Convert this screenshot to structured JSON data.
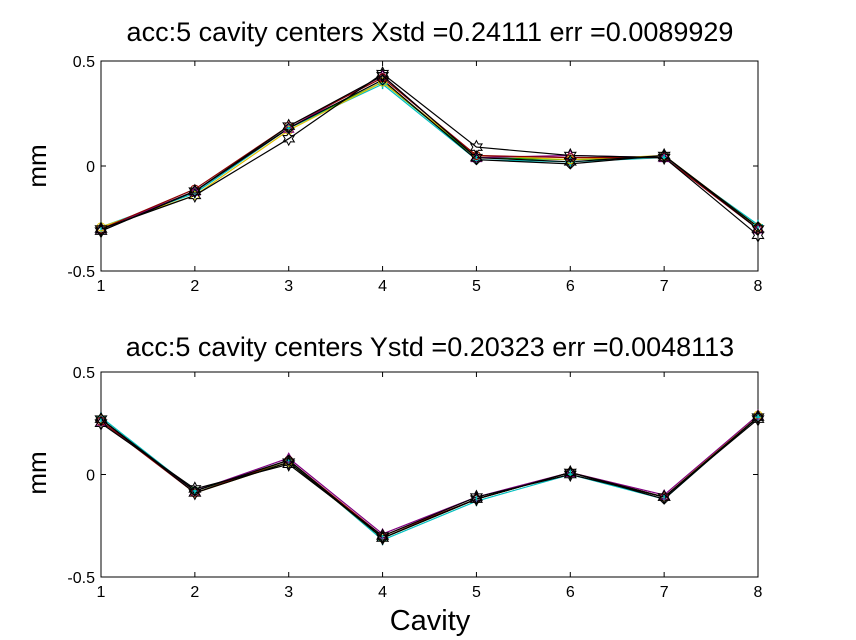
{
  "chart_data": [
    {
      "type": "line",
      "title": "acc:5 cavity centers Xstd =0.24111  err =0.0089929",
      "xlabel": "",
      "ylabel": "mm",
      "xlim": [
        1,
        8
      ],
      "ylim": [
        -0.5,
        0.5
      ],
      "xticks": [
        "1",
        "2",
        "3",
        "4",
        "5",
        "6",
        "7",
        "8"
      ],
      "yticks": [
        "0.5",
        "0",
        "-0.5"
      ],
      "grid": false,
      "x": [
        1,
        2,
        3,
        4,
        5,
        6,
        7,
        8
      ],
      "series": [
        {
          "color": "#000000",
          "marker": "hexagram",
          "values": [
            -0.31,
            -0.12,
            0.19,
            0.43,
            0.04,
            0.02,
            0.05,
            -0.3
          ]
        },
        {
          "color": "#000000",
          "marker": "hexagram",
          "values": [
            -0.3,
            -0.14,
            0.13,
            0.44,
            0.09,
            0.05,
            0.04,
            -0.33
          ]
        },
        {
          "color": "#000000",
          "marker": "diamond",
          "values": [
            -0.31,
            -0.12,
            0.18,
            0.41,
            0.03,
            0.01,
            0.05,
            -0.29
          ]
        },
        {
          "color": "#8b0000",
          "marker": "circle",
          "values": [
            -0.3,
            -0.11,
            0.19,
            0.42,
            0.05,
            0.04,
            0.04,
            -0.3
          ]
        },
        {
          "color": "#800080",
          "marker": "triangle",
          "values": [
            -0.3,
            -0.12,
            0.18,
            0.43,
            0.04,
            0.05,
            0.04,
            -0.3
          ]
        },
        {
          "color": "#e0c000",
          "marker": "circle",
          "values": [
            -0.29,
            -0.14,
            0.17,
            0.4,
            0.05,
            0.03,
            0.05,
            -0.29
          ]
        },
        {
          "color": "#00bfbf",
          "marker": "plus",
          "values": [
            -0.29,
            -0.13,
            0.18,
            0.39,
            0.03,
            0.02,
            0.04,
            -0.28
          ]
        },
        {
          "color": "#00a000",
          "marker": "circle",
          "values": [
            -0.3,
            -0.12,
            0.18,
            0.4,
            0.04,
            0.03,
            0.04,
            -0.29
          ]
        }
      ]
    },
    {
      "type": "line",
      "title": "acc:5 cavity centers Ystd =0.20323  err =0.0048113",
      "xlabel": "Cavity",
      "ylabel": "mm",
      "xlim": [
        1,
        8
      ],
      "ylim": [
        -0.5,
        0.5
      ],
      "xticks": [
        "1",
        "2",
        "3",
        "4",
        "5",
        "6",
        "7",
        "8"
      ],
      "yticks": [
        "0.5",
        "0",
        "-0.5"
      ],
      "grid": false,
      "x": [
        1,
        2,
        3,
        4,
        5,
        6,
        7,
        8
      ],
      "series": [
        {
          "color": "#000000",
          "marker": "hexagram",
          "values": [
            0.27,
            -0.09,
            0.06,
            -0.31,
            -0.12,
            0.01,
            -0.11,
            0.28
          ]
        },
        {
          "color": "#000000",
          "marker": "hexagram",
          "values": [
            0.25,
            -0.07,
            0.05,
            -0.3,
            -0.11,
            0.0,
            -0.11,
            0.27
          ]
        },
        {
          "color": "#000000",
          "marker": "diamond",
          "values": [
            0.27,
            -0.08,
            0.07,
            -0.31,
            -0.12,
            0.01,
            -0.12,
            0.28
          ]
        },
        {
          "color": "#8b0000",
          "marker": "circle",
          "values": [
            0.26,
            -0.09,
            0.07,
            -0.3,
            -0.12,
            0.01,
            -0.11,
            0.28
          ]
        },
        {
          "color": "#800080",
          "marker": "triangle",
          "values": [
            0.26,
            -0.08,
            0.08,
            -0.29,
            -0.11,
            0.01,
            -0.1,
            0.29
          ]
        },
        {
          "color": "#e0c000",
          "marker": "circle",
          "values": [
            0.27,
            -0.09,
            0.06,
            -0.31,
            -0.12,
            0.01,
            -0.11,
            0.29
          ]
        },
        {
          "color": "#00bfbf",
          "marker": "plus",
          "values": [
            0.28,
            -0.08,
            0.07,
            -0.32,
            -0.13,
            0.0,
            -0.12,
            0.28
          ]
        },
        {
          "color": "#00a000",
          "marker": "circle",
          "values": [
            0.27,
            -0.08,
            0.06,
            -0.31,
            -0.12,
            0.01,
            -0.11,
            0.28
          ]
        }
      ]
    }
  ]
}
